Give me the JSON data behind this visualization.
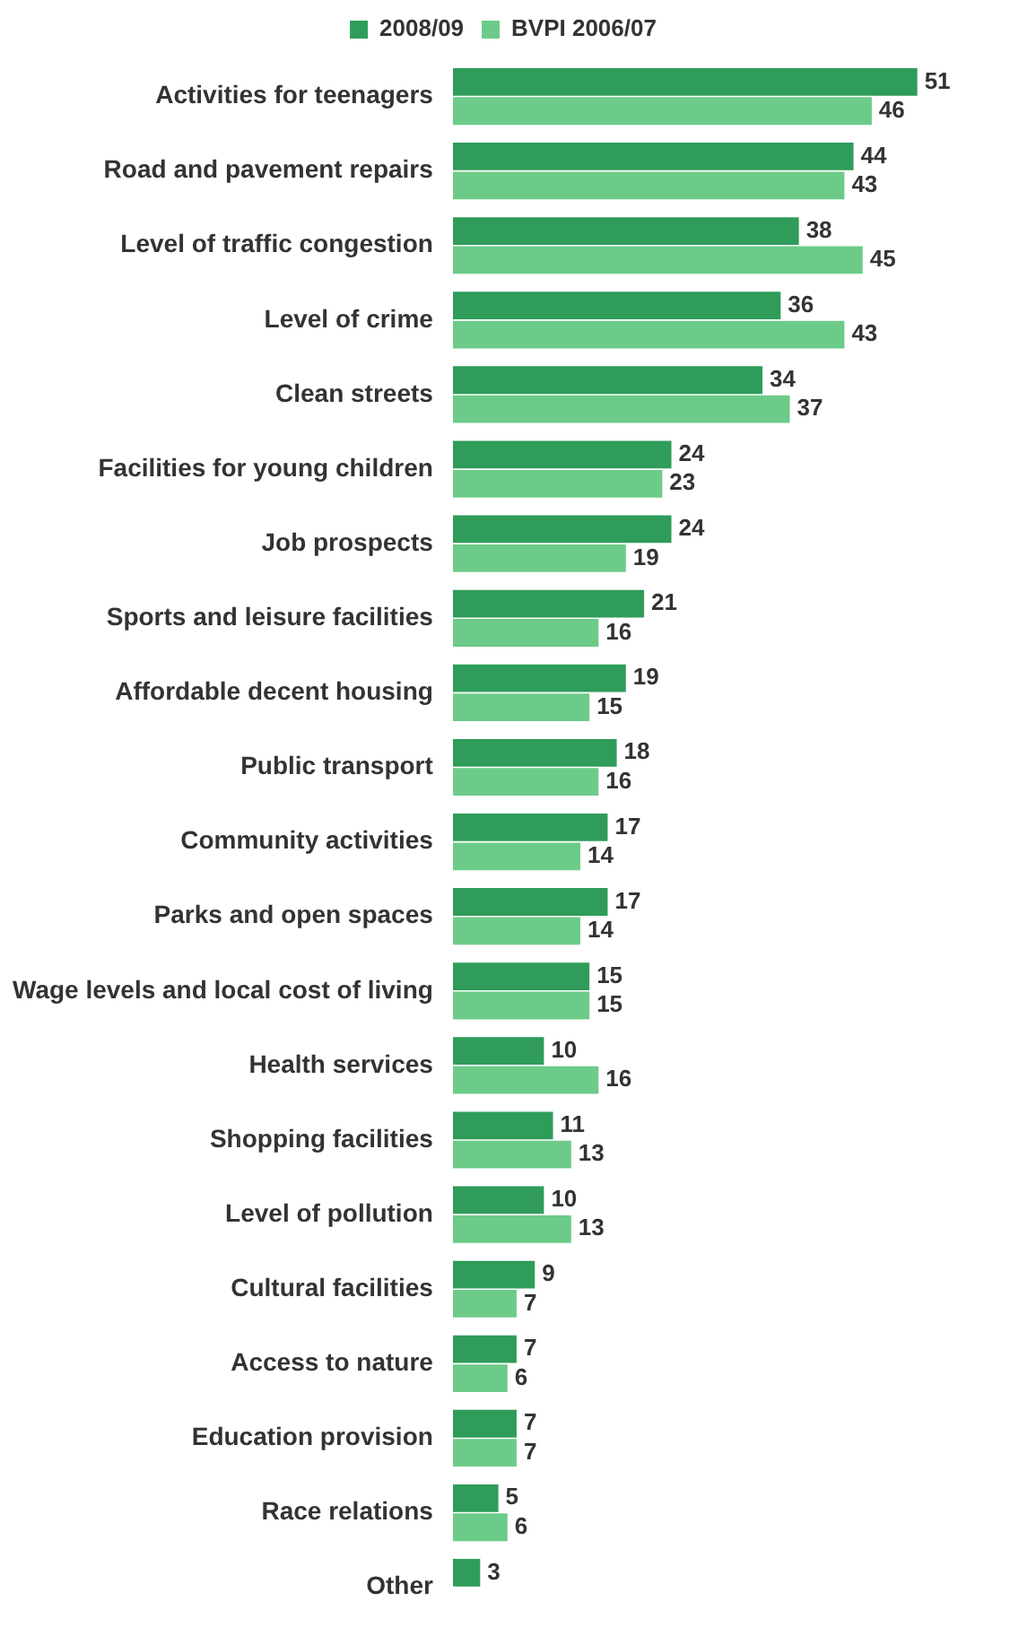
{
  "chart_data": {
    "type": "bar",
    "orientation": "horizontal",
    "legend": "top",
    "data_labels": true,
    "tick_labels": "y",
    "categories": [
      "Activities for teenagers",
      "Road and pavement repairs",
      "Level of traffic congestion",
      "Level of crime",
      "Clean streets",
      "Facilities for young children",
      "Job prospects",
      "Sports and leisure facilities",
      "Affordable decent housing",
      "Public transport",
      "Community activities",
      "Parks and open spaces",
      "Wage levels and local cost of living",
      "Health services",
      "Shopping facilities",
      "Level of pollution",
      "Cultural facilities",
      "Access to nature",
      "Education provision",
      "Race relations",
      "Other"
    ],
    "series": [
      {
        "name": "2008/09",
        "color": "#2f9c5a",
        "values": [
          51,
          44,
          38,
          36,
          34,
          24,
          24,
          21,
          19,
          18,
          17,
          17,
          15,
          10,
          11,
          10,
          9,
          7,
          7,
          5,
          3
        ]
      },
      {
        "name": "BVPI 2006/07",
        "color": "#6ccb88",
        "values": [
          46,
          43,
          45,
          43,
          37,
          23,
          19,
          16,
          15,
          16,
          14,
          14,
          15,
          16,
          13,
          13,
          7,
          6,
          7,
          6,
          null
        ]
      }
    ]
  }
}
